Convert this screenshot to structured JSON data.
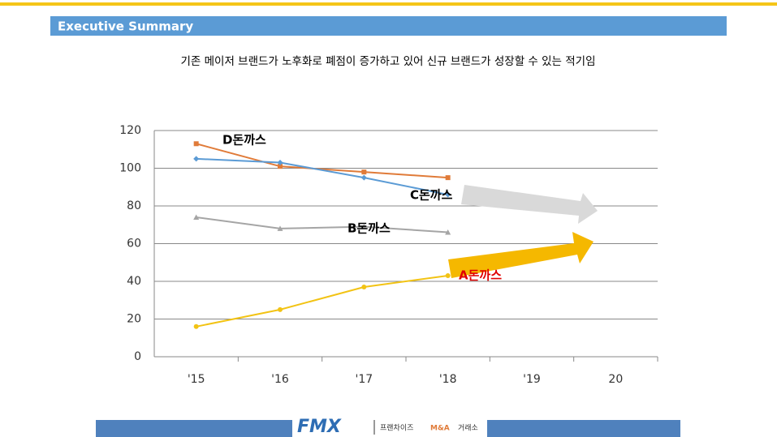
{
  "header": {
    "title": "Executive Summary"
  },
  "chart_data": {
    "type": "line",
    "title": "기존 메이저 브랜드가 노후화로 폐점이 증가하고 있어 신규 브랜드가 성장할 수 있는 적기임",
    "categories": [
      "'15",
      "'16",
      "'17",
      "'18",
      "'19",
      "20"
    ],
    "series": [
      {
        "name": "D돈까스",
        "color": "#e07b39",
        "marker": "square",
        "label_color": "#000000",
        "values": [
          113,
          101,
          98,
          95,
          null,
          null
        ]
      },
      {
        "name": "C돈까스",
        "color": "#5b9bd5",
        "marker": "diamond",
        "label_color": "#000000",
        "values": [
          105,
          103,
          95,
          86,
          null,
          null
        ]
      },
      {
        "name": "B돈까스",
        "color": "#a5a5a5",
        "marker": "triangle",
        "label_color": "#000000",
        "values": [
          74,
          68,
          69,
          66,
          null,
          null
        ]
      },
      {
        "name": "A돈까스",
        "color": "#f2c314",
        "marker": "circle",
        "label_color": "#e00000",
        "values": [
          16,
          25,
          37,
          43,
          null,
          null
        ]
      }
    ],
    "ylim": [
      0,
      120
    ],
    "yticks": [
      0,
      20,
      40,
      60,
      80,
      100,
      120
    ],
    "grid": true
  },
  "footer": {
    "logo": "FMX",
    "tagline": [
      "프랜차이즈",
      "M&A",
      "거래소"
    ]
  }
}
